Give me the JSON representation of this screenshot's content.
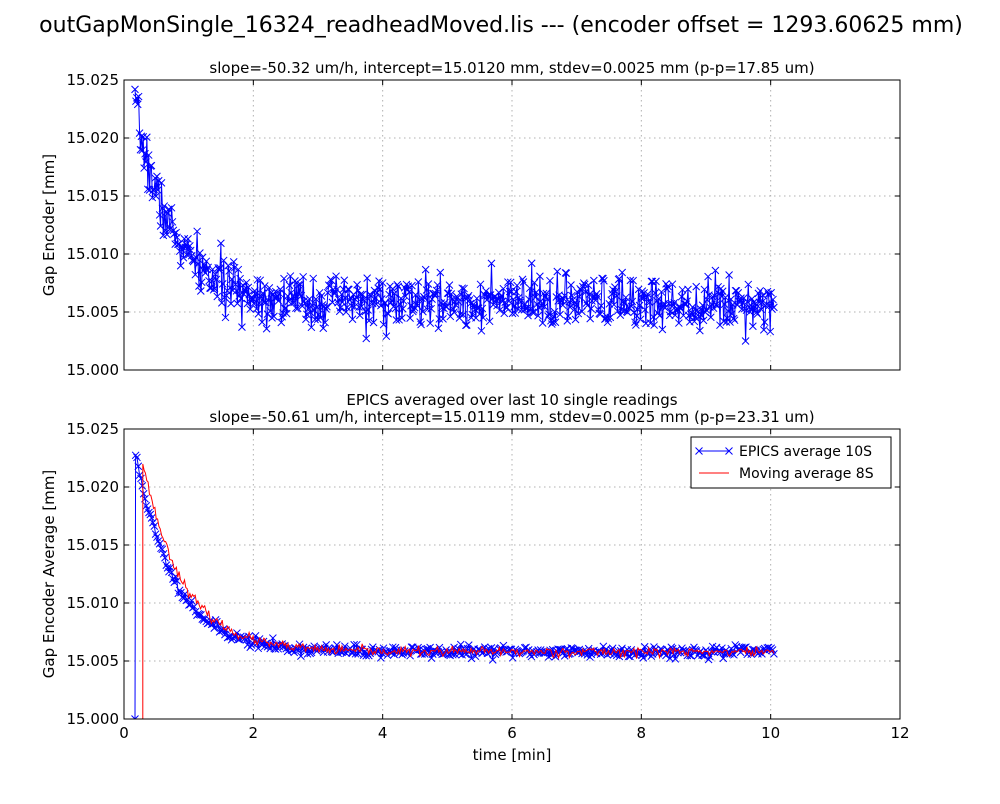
{
  "figure": {
    "title": "outGapMonSingle_16324_readheadMoved.lis --- (encoder offset = 1293.60625 mm)"
  },
  "colors": {
    "blue": "#0000ff",
    "red": "#ff0000",
    "grid": "#b0b0b0"
  },
  "chart_data": [
    {
      "type": "line",
      "subtitle": "slope=-50.32 um/h, intercept=15.0120 mm, stdev=0.0025 mm (p-p=17.85 um)",
      "title_line1": "",
      "xlabel": "",
      "ylabel": "Gap Encoder [mm]",
      "xlim": [
        0,
        12
      ],
      "ylim": [
        15.0,
        15.025
      ],
      "xticks": [
        0,
        2,
        4,
        6,
        8,
        10,
        12
      ],
      "xtick_labels": [],
      "yticks": [
        15.0,
        15.005,
        15.01,
        15.015,
        15.02,
        15.025
      ],
      "ytick_labels": [
        "15.000",
        "15.005",
        "15.010",
        "15.015",
        "15.020",
        "15.025"
      ],
      "grid": true,
      "series": [
        {
          "key": "single",
          "color": "#0000ff",
          "marker": "x",
          "model": {
            "x_start": 0.17,
            "x_end": 10.05,
            "n": 700,
            "base": 15.0058,
            "amp": 0.0168,
            "tau": 0.58,
            "noise": 0.0011,
            "seed": 7
          }
        }
      ]
    },
    {
      "type": "line",
      "title_line1": "EPICS averaged over last 10 single readings",
      "subtitle": "slope=-50.61 um/h, intercept=15.0119 mm, stdev=0.0025 mm (p-p=23.31 um)",
      "xlabel": "time [min]",
      "ylabel": "Gap Encoder Average [mm]",
      "xlim": [
        0,
        12
      ],
      "ylim": [
        15.0,
        15.025
      ],
      "xticks": [
        0,
        2,
        4,
        6,
        8,
        10,
        12
      ],
      "xtick_labels": [
        "0",
        "2",
        "4",
        "6",
        "8",
        "10",
        "12"
      ],
      "yticks": [
        15.0,
        15.005,
        15.01,
        15.015,
        15.02,
        15.025
      ],
      "ytick_labels": [
        "15.000",
        "15.005",
        "15.010",
        "15.015",
        "15.020",
        "15.025"
      ],
      "grid": true,
      "legend": {
        "placement": "top-right",
        "entries": [
          "EPICS average 10S",
          "Moving average 8S"
        ]
      },
      "series": [
        {
          "key": "epics",
          "name": "EPICS average 10S",
          "color": "#0000ff",
          "marker": "x",
          "start_point": [
            0.17,
            15.0
          ],
          "model": {
            "x_start": 0.18,
            "x_end": 10.05,
            "n": 480,
            "base": 15.0058,
            "amp": 0.017,
            "tau": 0.6,
            "noise": 0.00025,
            "seed": 11
          }
        },
        {
          "key": "moving",
          "name": "Moving average 8S",
          "color": "#ff0000",
          "marker": "none",
          "start_point": [
            0.29,
            15.0
          ],
          "model": {
            "x_start": 0.29,
            "x_end": 10.05,
            "n": 470,
            "base": 15.0058,
            "amp": 0.0164,
            "tau": 0.62,
            "noise": 0.0002,
            "seed": 23
          }
        }
      ]
    }
  ]
}
